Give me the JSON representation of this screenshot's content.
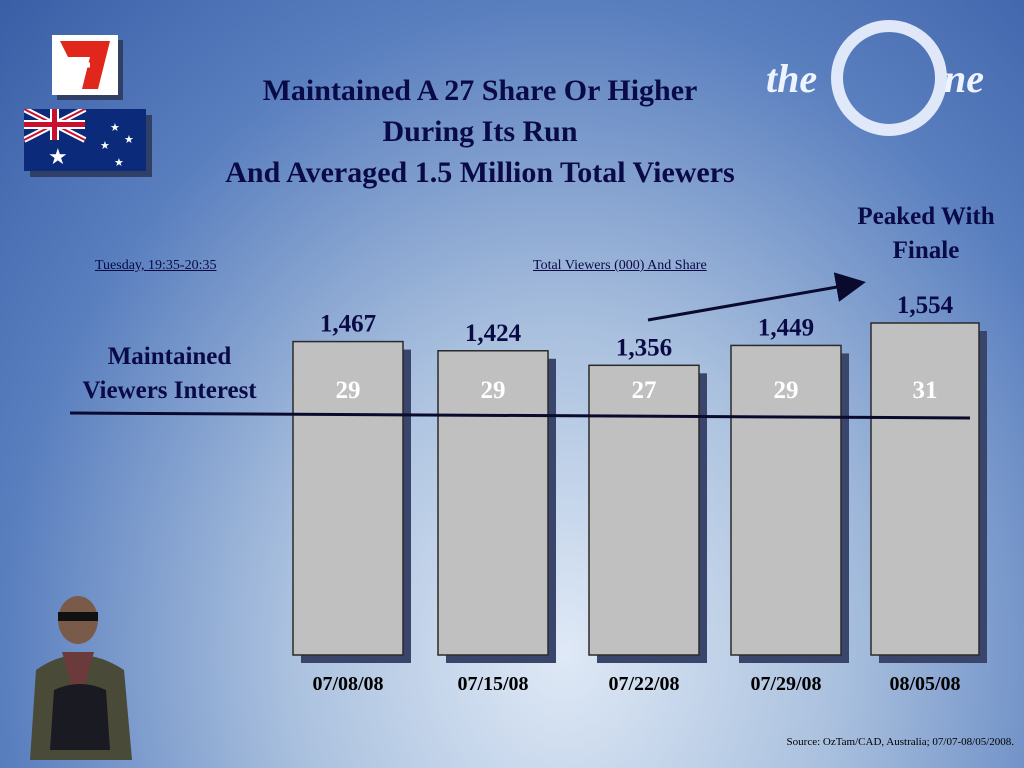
{
  "header": {
    "title_line1": "Maintained A 27 Share Or Higher",
    "title_line2": "During Its Run",
    "title_line3": "And Averaged 1.5 Million Total Viewers"
  },
  "subtitle_left": "Tuesday, 19:35-20:35",
  "subtitle_center": "Total Viewers (000) And Share",
  "annotations": {
    "maintained_line1": "Maintained",
    "maintained_line2": "Viewers Interest",
    "peaked_line1": "Peaked With",
    "peaked_line2": "Finale"
  },
  "source": "Source: OzTam/CAD, Australia; 07/07-08/05/2008.",
  "logos": {
    "network": "seven-logo",
    "flag": "australia-flag-icon",
    "show": "the-one-logo",
    "the_text": "the",
    "one_text": "ne"
  },
  "colors": {
    "title": "#0a0a46",
    "bar_fill": "#c0c0c0",
    "bar_shadow": "#39456b",
    "line": "#0a0a2e"
  },
  "chart_data": {
    "type": "bar",
    "categories": [
      "07/08/08",
      "07/15/08",
      "07/22/08",
      "07/29/08",
      "08/05/08"
    ],
    "values": [
      1467,
      1424,
      1356,
      1449,
      1554
    ],
    "value_labels": [
      "1,467",
      "1,424",
      "1,356",
      "1,449",
      "1,554"
    ],
    "share": [
      29,
      29,
      27,
      29,
      31
    ],
    "title": "Total Viewers (000) And Share"
  }
}
